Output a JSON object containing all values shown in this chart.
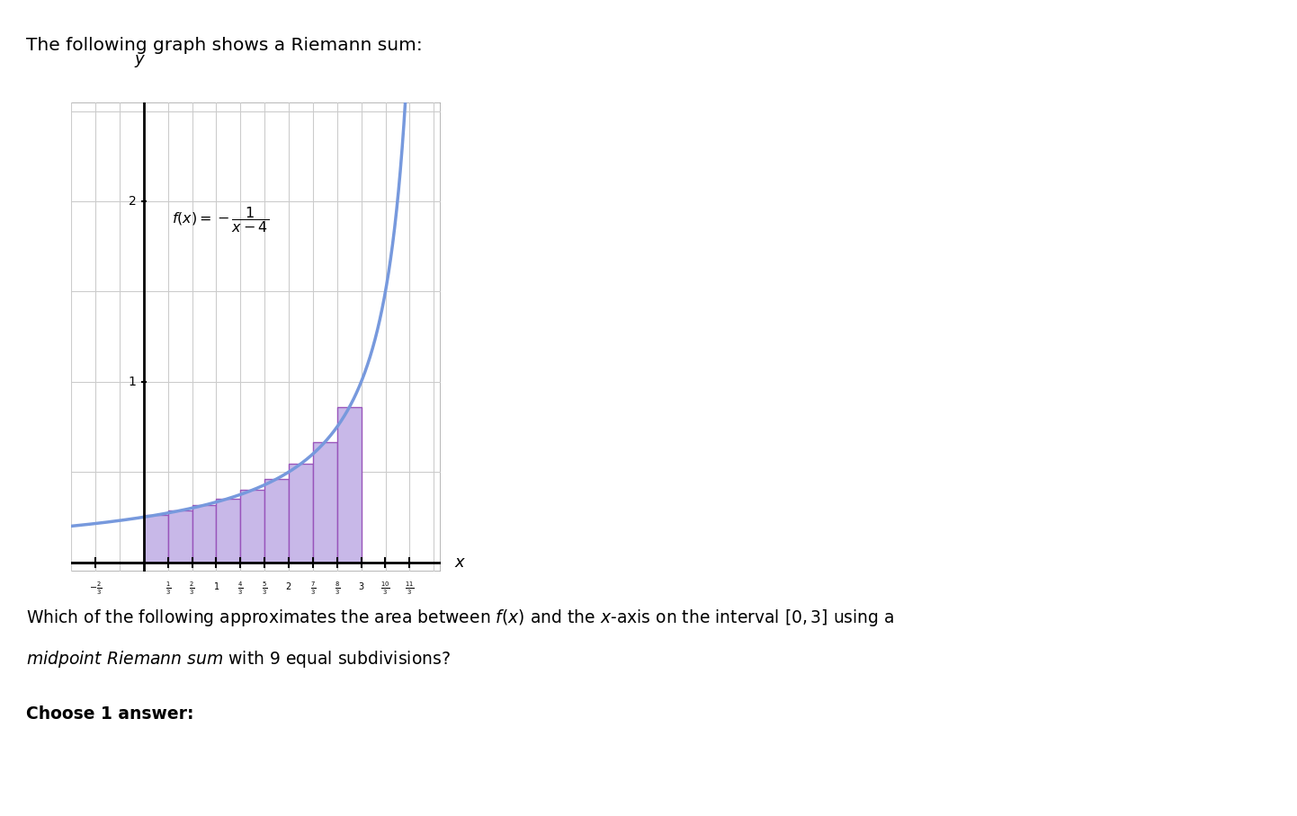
{
  "title": "The following graph shows a Riemann sum:",
  "xlabel": "x",
  "ylabel": "y",
  "xlim": [
    -1.0,
    4.1
  ],
  "ylim": [
    -0.05,
    2.55
  ],
  "interval_start": 0,
  "interval_end": 3,
  "n_subdivisions": 9,
  "bar_fill_color": "#c8b8e8",
  "bar_edge_color": "#9955bb",
  "curve_color": "#7799dd",
  "curve_linewidth": 2.5,
  "grid_color": "#cccccc",
  "ax_background": "#f5f5f5",
  "x_tick_positions": [
    -0.6667,
    0.3333,
    0.6667,
    1.0,
    1.3333,
    1.6667,
    2.0,
    2.3333,
    2.6667,
    3.0,
    3.3333,
    3.6667
  ],
  "x_tick_labels": [
    "-\\frac{2}{3}",
    "\\frac{1}{3}",
    "\\frac{2}{3}",
    "1",
    "\\frac{4}{3}",
    "\\frac{5}{3}",
    "2",
    "\\frac{7}{3}",
    "\\frac{8}{3}",
    "3",
    "\\frac{10}{3}",
    "\\frac{11}{3}"
  ],
  "y_tick_positions": [
    1.0,
    2.0
  ],
  "y_tick_labels": [
    "1",
    "2"
  ],
  "figsize": [
    14.42,
    9.08
  ],
  "dpi": 100
}
